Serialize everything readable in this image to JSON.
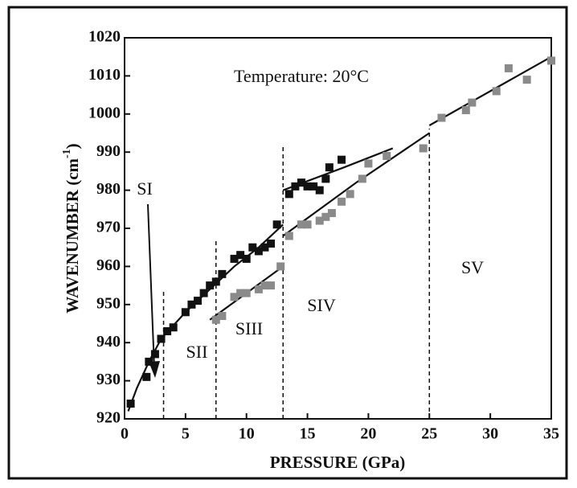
{
  "chart_data": {
    "type": "scatter",
    "annotation": "Temperature: 20°C",
    "x_label": "PRESSURE (GPa)",
    "y_label": "WAVENUMBER (cm",
    "y_label_sup": "-1",
    "y_label_end": ")",
    "xlim": [
      0,
      35
    ],
    "ylim": [
      920,
      1020
    ],
    "xticks": [
      0,
      5,
      10,
      15,
      20,
      25,
      30,
      35
    ],
    "yticks": [
      920,
      930,
      940,
      950,
      960,
      970,
      980,
      990,
      1000,
      1010,
      1020
    ],
    "regions": [
      "SI",
      "SII",
      "SIII",
      "SIV",
      "SV"
    ],
    "boundaries": [
      3.2,
      7.5,
      13,
      25
    ],
    "series": [
      {
        "color": "#111111",
        "x": [
          0.5,
          1.8,
          2.0,
          2.5,
          3.0,
          3.5,
          4.0,
          5.0,
          5.5,
          6.0,
          6.5,
          7.0,
          7.5,
          8.0,
          9.0,
          9.5,
          10.0,
          10.5,
          11.0,
          11.5,
          12.0,
          12.5,
          13.5,
          14.0,
          14.5,
          15.0,
          15.5,
          16.0,
          16.5,
          16.8,
          17.8
        ],
        "values": [
          924,
          931,
          935,
          937,
          941,
          943,
          944,
          948,
          950,
          951,
          953,
          955,
          956,
          958,
          962,
          963,
          962,
          965,
          964,
          965,
          966,
          971,
          979,
          981,
          982,
          981,
          981,
          980,
          983,
          986,
          988
        ]
      },
      {
        "color": "#8a8a8a",
        "x": [
          7.5,
          8.0,
          9.0,
          9.5,
          10.0,
          11.0,
          11.5,
          12.0,
          12.8,
          13.5,
          14.5,
          15.0,
          16.0,
          16.5,
          17.0,
          17.8,
          18.5,
          19.5,
          20.0,
          21.5,
          24.5,
          26.0,
          28.0,
          28.5,
          30.5,
          31.5,
          33.0,
          35.0
        ],
        "values": [
          946,
          947,
          952,
          953,
          953,
          954,
          955,
          955,
          960,
          968,
          971,
          971,
          972,
          973,
          974,
          977,
          979,
          983,
          987,
          989,
          991,
          999,
          1001,
          1003,
          1006,
          1012,
          1009,
          1014
        ]
      }
    ],
    "fit_lines": [
      {
        "x": [
          0.3,
          1.0,
          2.0,
          3.0
        ],
        "values": [
          922,
          928,
          935,
          941
        ]
      },
      {
        "x": [
          3.0,
          5.0,
          7.0,
          9.0,
          11.0,
          13.0
        ],
        "values": [
          941,
          948,
          954,
          960,
          965,
          971
        ]
      },
      {
        "x": [
          7.0,
          13.0
        ],
        "values": [
          946,
          960
        ]
      },
      {
        "x": [
          13.0,
          19.0,
          25.0
        ],
        "values": [
          968,
          982,
          995
        ]
      },
      {
        "x": [
          13.0,
          18.0,
          22.0
        ],
        "values": [
          980,
          986,
          991
        ]
      },
      {
        "x": [
          25.0,
          35.0
        ],
        "values": [
          997,
          1015
        ]
      }
    ]
  }
}
